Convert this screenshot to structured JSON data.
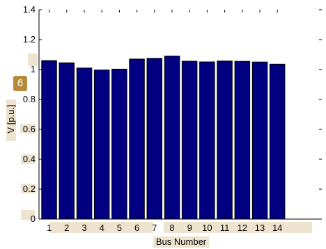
{
  "chart_data": {
    "type": "bar",
    "xlabel": "Bus Number",
    "ylabel": "V [p.u.]",
    "categories": [
      "1",
      "2",
      "3",
      "4",
      "5",
      "6",
      "7",
      "8",
      "9",
      "10",
      "11",
      "12",
      "13",
      "14"
    ],
    "values": [
      1.06,
      1.045,
      1.01,
      0.997,
      1.003,
      1.07,
      1.075,
      1.09,
      1.056,
      1.051,
      1.057,
      1.055,
      1.05,
      1.036
    ],
    "ylim": [
      0,
      1.4
    ],
    "yticks": [
      "0",
      "0.2",
      "0.4",
      "0.6",
      "0.8",
      "1",
      "1.2",
      "1.4"
    ],
    "grid": false,
    "legend": "none",
    "bar_color": "#000080",
    "highlight_color": "#ede3cf"
  },
  "badge": {
    "label": "6"
  }
}
